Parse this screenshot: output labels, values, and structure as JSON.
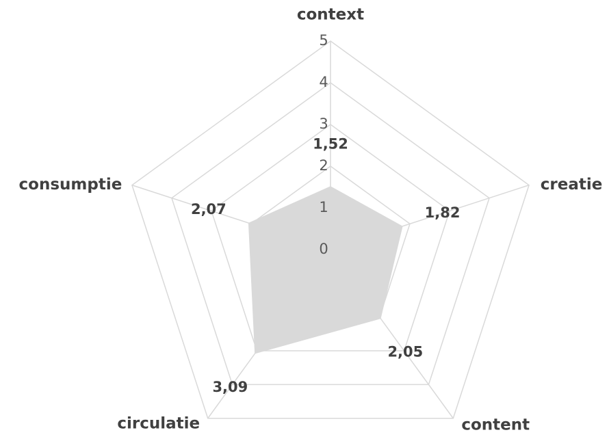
{
  "chart_data": {
    "type": "radar",
    "categories": [
      "context",
      "creatie",
      "content",
      "circulatie",
      "consumptie"
    ],
    "series": [
      {
        "color": "#d9d9d9",
        "values": [
          1.52,
          1.82,
          2.05,
          3.09,
          2.07
        ],
        "value_labels": [
          "1,52",
          "1,82",
          "2,05",
          "3,09",
          "2,07"
        ]
      }
    ],
    "ylim": [
      0,
      5
    ],
    "yticks": [
      0,
      1,
      2,
      3,
      4,
      5
    ],
    "grid": true
  }
}
